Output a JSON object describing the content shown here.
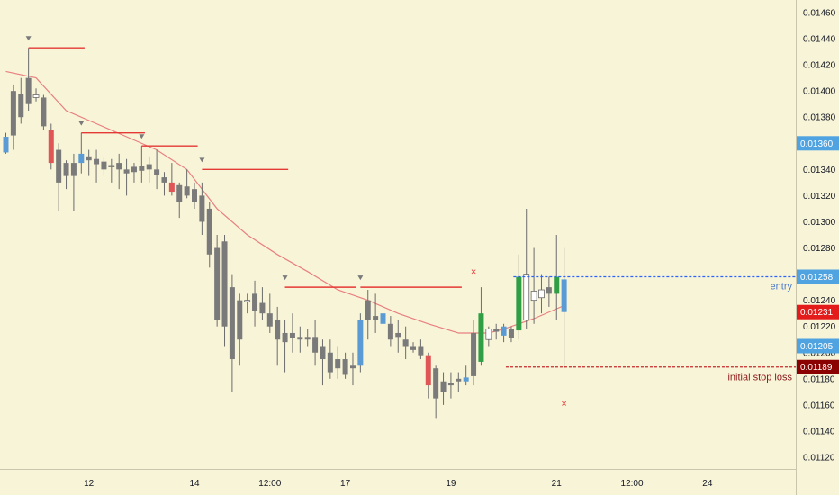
{
  "chart_data": {
    "type": "candlestick",
    "y_axis": {
      "min": 0.0111,
      "max": 0.0147,
      "tick_labels": [
        "0.01460",
        "0.01440",
        "0.01420",
        "0.01400",
        "0.01380",
        "0.01360",
        "0.01340",
        "0.01320",
        "0.01300",
        "0.01280",
        "0.01260",
        "0.01240",
        "0.01220",
        "0.01200",
        "0.01180",
        "0.01160",
        "0.01140",
        "0.01120"
      ],
      "tick_values": [
        0.0146,
        0.0144,
        0.0142,
        0.014,
        0.0138,
        0.0136,
        0.0134,
        0.0132,
        0.013,
        0.0128,
        0.0126,
        0.0124,
        0.0122,
        0.012,
        0.0118,
        0.0116,
        0.0114,
        0.0112
      ]
    },
    "x_axis": {
      "tick_labels": [
        "12",
        "14",
        "12:00",
        "17",
        "19",
        "21",
        "12:00",
        "24"
      ],
      "tick_bar_index": [
        11,
        25,
        35,
        45,
        59,
        73,
        83,
        93
      ]
    },
    "colors": {
      "background": "#f8f4d8",
      "up_default": "#ffffff",
      "down_default": "#7a7a7a",
      "wick": "#6b6b6b",
      "highlight_blue": "#5b9bd5",
      "highlight_red": "#e05656",
      "highlight_green": "#2f9e44",
      "moving_average": "#e88080",
      "swing_line": "#e53935",
      "entry_line": "#2962ff",
      "stop_line": "#c62828"
    },
    "candles": [
      {
        "o": 0.01353,
        "h": 0.01368,
        "l": 0.01352,
        "c": 0.01365,
        "color": "blue"
      },
      {
        "o": 0.014,
        "h": 0.01405,
        "l": 0.01355,
        "c": 0.01366
      },
      {
        "o": 0.01398,
        "h": 0.0141,
        "l": 0.01375,
        "c": 0.0138
      },
      {
        "o": 0.0141,
        "h": 0.01433,
        "l": 0.01385,
        "c": 0.0139
      },
      {
        "o": 0.01397,
        "h": 0.01402,
        "l": 0.01392,
        "c": 0.01395,
        "up": true
      },
      {
        "o": 0.01395,
        "h": 0.01397,
        "l": 0.0137,
        "c": 0.01373
      },
      {
        "o": 0.0137,
        "h": 0.01375,
        "l": 0.0134,
        "c": 0.01345,
        "color": "red"
      },
      {
        "o": 0.01355,
        "h": 0.0136,
        "l": 0.01308,
        "c": 0.0133
      },
      {
        "o": 0.01345,
        "h": 0.01347,
        "l": 0.01325,
        "c": 0.01335
      },
      {
        "o": 0.01335,
        "h": 0.01352,
        "l": 0.01308,
        "c": 0.01345
      },
      {
        "o": 0.01345,
        "h": 0.01368,
        "l": 0.01337,
        "c": 0.01352,
        "color": "blue"
      },
      {
        "o": 0.0135,
        "h": 0.01355,
        "l": 0.01335,
        "c": 0.01347
      },
      {
        "o": 0.01348,
        "h": 0.01355,
        "l": 0.0133,
        "c": 0.01344
      },
      {
        "o": 0.01346,
        "h": 0.0135,
        "l": 0.01335,
        "c": 0.0134
      },
      {
        "o": 0.01342,
        "h": 0.01348,
        "l": 0.0133,
        "c": 0.01343,
        "up": true
      },
      {
        "o": 0.01345,
        "h": 0.01352,
        "l": 0.01325,
        "c": 0.0134
      },
      {
        "o": 0.0134,
        "h": 0.01348,
        "l": 0.0132,
        "c": 0.01337
      },
      {
        "o": 0.01342,
        "h": 0.01345,
        "l": 0.0133,
        "c": 0.01338
      },
      {
        "o": 0.01343,
        "h": 0.01358,
        "l": 0.0133,
        "c": 0.01339
      },
      {
        "o": 0.01344,
        "h": 0.0135,
        "l": 0.0133,
        "c": 0.0134
      },
      {
        "o": 0.0134,
        "h": 0.01355,
        "l": 0.01325,
        "c": 0.01336
      },
      {
        "o": 0.01334,
        "h": 0.01338,
        "l": 0.0132,
        "c": 0.0133
      },
      {
        "o": 0.0133,
        "h": 0.01345,
        "l": 0.0132,
        "c": 0.01323,
        "color": "red"
      },
      {
        "o": 0.01328,
        "h": 0.0133,
        "l": 0.01303,
        "c": 0.01315
      },
      {
        "o": 0.01327,
        "h": 0.0134,
        "l": 0.01318,
        "c": 0.0132
      },
      {
        "o": 0.01325,
        "h": 0.0133,
        "l": 0.0131,
        "c": 0.01315
      },
      {
        "o": 0.0132,
        "h": 0.0133,
        "l": 0.0129,
        "c": 0.013
      },
      {
        "o": 0.0131,
        "h": 0.01315,
        "l": 0.01265,
        "c": 0.01275
      },
      {
        "o": 0.0128,
        "h": 0.0129,
        "l": 0.0122,
        "c": 0.01225
      },
      {
        "o": 0.01285,
        "h": 0.0129,
        "l": 0.01205,
        "c": 0.0122
      },
      {
        "o": 0.0125,
        "h": 0.0126,
        "l": 0.0117,
        "c": 0.01195
      },
      {
        "o": 0.0124,
        "h": 0.01245,
        "l": 0.0119,
        "c": 0.0121
      },
      {
        "o": 0.0124,
        "h": 0.01245,
        "l": 0.0123,
        "c": 0.0124,
        "up": true
      },
      {
        "o": 0.01245,
        "h": 0.01255,
        "l": 0.0122,
        "c": 0.01232
      },
      {
        "o": 0.01238,
        "h": 0.0125,
        "l": 0.01225,
        "c": 0.0123
      },
      {
        "o": 0.0123,
        "h": 0.01245,
        "l": 0.01215,
        "c": 0.0122
      },
      {
        "o": 0.01225,
        "h": 0.01235,
        "l": 0.0119,
        "c": 0.0121
      },
      {
        "o": 0.01215,
        "h": 0.01225,
        "l": 0.01185,
        "c": 0.01208
      },
      {
        "o": 0.01215,
        "h": 0.0123,
        "l": 0.012,
        "c": 0.01211
      },
      {
        "o": 0.01212,
        "h": 0.0122,
        "l": 0.012,
        "c": 0.0121
      },
      {
        "o": 0.01212,
        "h": 0.01218,
        "l": 0.01205,
        "c": 0.0121
      },
      {
        "o": 0.01212,
        "h": 0.01225,
        "l": 0.0119,
        "c": 0.012
      },
      {
        "o": 0.01205,
        "h": 0.0121,
        "l": 0.01175,
        "c": 0.01195
      },
      {
        "o": 0.012,
        "h": 0.0121,
        "l": 0.0118,
        "c": 0.01185
      },
      {
        "o": 0.01195,
        "h": 0.01205,
        "l": 0.0118,
        "c": 0.01188
      },
      {
        "o": 0.01195,
        "h": 0.012,
        "l": 0.0118,
        "c": 0.01183
      },
      {
        "o": 0.01188,
        "h": 0.012,
        "l": 0.01175,
        "c": 0.0119
      },
      {
        "o": 0.0119,
        "h": 0.0123,
        "l": 0.01185,
        "c": 0.01225,
        "color": "blue"
      },
      {
        "o": 0.0124,
        "h": 0.01248,
        "l": 0.0121,
        "c": 0.01225
      },
      {
        "o": 0.01228,
        "h": 0.01245,
        "l": 0.01215,
        "c": 0.01225
      },
      {
        "o": 0.0123,
        "h": 0.01248,
        "l": 0.01205,
        "c": 0.01222,
        "color": "blue"
      },
      {
        "o": 0.01222,
        "h": 0.01228,
        "l": 0.01205,
        "c": 0.0121
      },
      {
        "o": 0.01215,
        "h": 0.01225,
        "l": 0.012,
        "c": 0.01212
      },
      {
        "o": 0.0121,
        "h": 0.0122,
        "l": 0.01195,
        "c": 0.01205
      },
      {
        "o": 0.01205,
        "h": 0.01208,
        "l": 0.012,
        "c": 0.01202
      },
      {
        "o": 0.01205,
        "h": 0.0121,
        "l": 0.01195,
        "c": 0.01198
      },
      {
        "o": 0.01198,
        "h": 0.012,
        "l": 0.01165,
        "c": 0.01175,
        "color": "red"
      },
      {
        "o": 0.01188,
        "h": 0.0119,
        "l": 0.0115,
        "c": 0.01165
      },
      {
        "o": 0.0117,
        "h": 0.01185,
        "l": 0.0116,
        "c": 0.01178
      },
      {
        "o": 0.01175,
        "h": 0.01185,
        "l": 0.01165,
        "c": 0.01177
      },
      {
        "o": 0.01178,
        "h": 0.01185,
        "l": 0.0117,
        "c": 0.0118
      },
      {
        "o": 0.01178,
        "h": 0.0119,
        "l": 0.01175,
        "c": 0.01181,
        "color": "blue"
      },
      {
        "o": 0.01182,
        "h": 0.01225,
        "l": 0.01175,
        "c": 0.01215
      },
      {
        "o": 0.01193,
        "h": 0.0125,
        "l": 0.0119,
        "c": 0.0123,
        "color": "green"
      },
      {
        "o": 0.0121,
        "h": 0.0122,
        "l": 0.01205,
        "c": 0.01218,
        "up": true
      },
      {
        "o": 0.01218,
        "h": 0.01222,
        "l": 0.0121,
        "c": 0.01216
      },
      {
        "o": 0.01213,
        "h": 0.01222,
        "l": 0.01208,
        "c": 0.0122,
        "color": "blue"
      },
      {
        "o": 0.01218,
        "h": 0.0122,
        "l": 0.01208,
        "c": 0.01211
      },
      {
        "o": 0.01217,
        "h": 0.01275,
        "l": 0.0121,
        "c": 0.01258,
        "color": "green"
      },
      {
        "o": 0.01225,
        "h": 0.0131,
        "l": 0.01218,
        "c": 0.0126,
        "up": true
      },
      {
        "o": 0.0124,
        "h": 0.0128,
        "l": 0.01222,
        "c": 0.01247,
        "up": true
      },
      {
        "o": 0.01242,
        "h": 0.0126,
        "l": 0.0123,
        "c": 0.01248,
        "up": true
      },
      {
        "o": 0.0125,
        "h": 0.01258,
        "l": 0.01235,
        "c": 0.01245
      },
      {
        "o": 0.01245,
        "h": 0.0129,
        "l": 0.01225,
        "c": 0.01258,
        "color": "green"
      },
      {
        "o": 0.01256,
        "h": 0.0128,
        "l": 0.01188,
        "c": 0.01231,
        "color": "blue"
      }
    ],
    "moving_average": {
      "x": [
        0,
        4,
        8,
        12,
        16,
        20,
        24,
        28,
        32,
        36,
        40,
        44,
        48,
        52,
        56,
        60,
        62,
        64,
        66,
        68,
        70,
        74
      ],
      "y": [
        0.01415,
        0.0141,
        0.01385,
        0.01375,
        0.01365,
        0.01355,
        0.0134,
        0.0131,
        0.0129,
        0.01275,
        0.01262,
        0.01248,
        0.0124,
        0.0123,
        0.01222,
        0.01215,
        0.01215,
        0.01215,
        0.01218,
        0.01222,
        0.01226,
        0.01236
      ]
    },
    "swing_highs": [
      {
        "x0": 3,
        "x1": 9,
        "y": 0.01433
      },
      {
        "x0": 10,
        "x1": 17,
        "y": 0.01368
      },
      {
        "x0": 18,
        "x1": 24,
        "y": 0.01358
      },
      {
        "x0": 26,
        "x1": 36,
        "y": 0.0134
      },
      {
        "x0": 37,
        "x1": 45,
        "y": 0.0125
      },
      {
        "x0": 47,
        "x1": 59,
        "y": 0.0125
      }
    ],
    "triangle_markers": [
      3,
      10,
      18,
      26,
      37,
      47
    ],
    "cross_markers": [
      {
        "x": 62,
        "y": 0.01258
      },
      {
        "x": 74,
        "y": 0.01175
      }
    ],
    "entry": {
      "x0": 68,
      "value": 0.01258,
      "label": "entry",
      "badge": "0.01258"
    },
    "stop_loss": {
      "x0": 67,
      "value": 0.01189,
      "label": "initial stop loss",
      "badge": "0.01189"
    },
    "price_badges": [
      {
        "text": "0.01360",
        "value": 0.0136,
        "color": "#4fa3e0"
      },
      {
        "text": "0.01258",
        "value": 0.01258,
        "color": "#4fa3e0"
      },
      {
        "text": "0.01231",
        "value": 0.01231,
        "color": "#e31b1b"
      },
      {
        "text": "0.01205",
        "value": 0.01205,
        "color": "#4fa3e0"
      },
      {
        "text": "0.01189",
        "value": 0.01189,
        "color": "#8b0000"
      }
    ]
  }
}
